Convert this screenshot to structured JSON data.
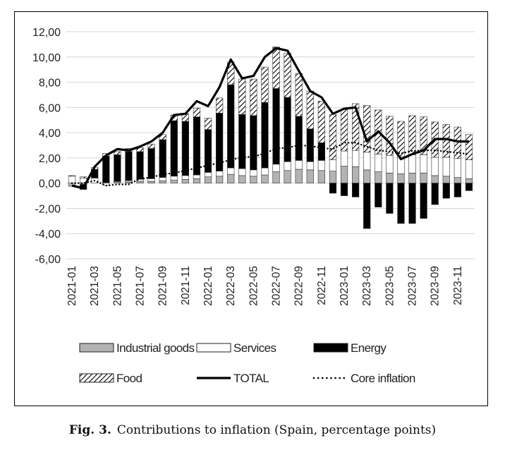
{
  "caption": {
    "label": "Fig. 3.",
    "text": "Contributions to inflation (Spain, percentage points)"
  },
  "chart_data": {
    "type": "bar",
    "stacked": true,
    "title": "",
    "xlabel": "",
    "ylabel": "",
    "ylim": [
      -6,
      12
    ],
    "yticks": [
      "12,00",
      "10,00",
      "8,00",
      "6,00",
      "4,00",
      "2,00",
      "0,00",
      "-2,00",
      "-4,00",
      "-6,00"
    ],
    "ytick_values": [
      12,
      10,
      8,
      6,
      4,
      2,
      0,
      -2,
      -4,
      -6
    ],
    "grid": true,
    "legend_position": "bottom",
    "categories": [
      "2021-01",
      "2021-02",
      "2021-03",
      "2021-04",
      "2021-05",
      "2021-06",
      "2021-07",
      "2021-08",
      "2021-09",
      "2021-10",
      "2021-11",
      "2021-12",
      "2022-01",
      "2022-02",
      "2022-03",
      "2022-04",
      "2022-05",
      "2022-06",
      "2022-07",
      "2022-08",
      "2022-09",
      "2022-10",
      "2022-11",
      "2022-12",
      "2023-01",
      "2023-02",
      "2023-03",
      "2023-04",
      "2023-05",
      "2023-06",
      "2023-07",
      "2023-08",
      "2023-09",
      "2023-10",
      "2023-11",
      "2023-12"
    ],
    "xtick_labels": [
      "2021-01",
      "2021-03",
      "2021-05",
      "2021-07",
      "2021-09",
      "2021-11",
      "2022-01",
      "2022-03",
      "2022-05",
      "2022-07",
      "2022-09",
      "2022-11",
      "2023-01",
      "2023-03",
      "2023-05",
      "2023-07",
      "2023-09",
      "2023-11"
    ],
    "series": [
      {
        "name": "Industrial goods",
        "kind": "bar",
        "color": "#b3b3b3",
        "values": [
          -0.25,
          -0.1,
          0.0,
          0.05,
          0.1,
          0.1,
          0.15,
          0.15,
          0.2,
          0.25,
          0.3,
          0.35,
          0.5,
          0.55,
          0.7,
          0.6,
          0.55,
          0.65,
          0.9,
          1.0,
          1.1,
          1.05,
          1.0,
          0.95,
          1.35,
          1.3,
          1.05,
          0.9,
          0.8,
          0.75,
          0.8,
          0.8,
          0.6,
          0.55,
          0.45,
          0.35
        ]
      },
      {
        "name": "Services",
        "kind": "bar",
        "color": "#ffffff",
        "values": [
          0.55,
          0.4,
          0.4,
          -0.15,
          0.05,
          0.1,
          0.15,
          0.2,
          0.25,
          0.3,
          0.3,
          0.3,
          0.35,
          0.4,
          0.5,
          0.55,
          0.5,
          0.55,
          0.6,
          0.7,
          0.7,
          0.65,
          0.8,
          0.9,
          1.2,
          1.3,
          1.4,
          1.4,
          1.4,
          1.35,
          1.45,
          1.45,
          1.45,
          1.5,
          1.5,
          1.5
        ]
      },
      {
        "name": "Energy",
        "kind": "bar",
        "color": "#000000",
        "values": [
          0.0,
          -0.4,
          0.7,
          2.1,
          2.1,
          2.3,
          2.2,
          2.4,
          3.0,
          4.4,
          4.3,
          4.6,
          3.4,
          4.6,
          6.6,
          4.3,
          4.3,
          5.2,
          6.0,
          5.1,
          3.5,
          2.6,
          1.4,
          -0.8,
          -1.0,
          -1.1,
          -3.6,
          -1.9,
          -2.4,
          -3.2,
          -3.2,
          -2.8,
          -1.7,
          -1.2,
          -1.1,
          -0.6
        ]
      },
      {
        "name": "Food",
        "kind": "bar",
        "color": "#ffffff",
        "hatched": true,
        "values": [
          0.05,
          0.1,
          0.15,
          0.2,
          0.25,
          0.25,
          0.3,
          0.35,
          0.4,
          0.45,
          0.6,
          0.7,
          0.9,
          1.2,
          1.8,
          2.8,
          2.9,
          2.8,
          3.3,
          3.5,
          3.4,
          3.0,
          3.3,
          3.6,
          3.3,
          3.7,
          3.7,
          3.5,
          3.1,
          2.8,
          3.1,
          3.0,
          2.8,
          2.6,
          2.5,
          2.0
        ]
      },
      {
        "name": "TOTAL",
        "kind": "line",
        "style": "solid",
        "color": "#000000",
        "values": [
          -0.2,
          -0.4,
          1.3,
          2.2,
          2.7,
          2.6,
          2.9,
          3.3,
          4.0,
          5.4,
          5.5,
          6.5,
          6.1,
          7.6,
          9.8,
          8.3,
          8.5,
          10.0,
          10.7,
          10.5,
          8.9,
          7.3,
          6.8,
          5.5,
          5.9,
          6.0,
          3.3,
          4.1,
          3.2,
          1.9,
          2.3,
          2.6,
          3.5,
          3.5,
          3.3,
          3.3
        ]
      },
      {
        "name": "Core inflation",
        "kind": "line",
        "style": "dotted",
        "color": "#000000",
        "values": [
          0.0,
          0.0,
          0.2,
          -0.2,
          -0.1,
          -0.1,
          0.35,
          0.45,
          0.7,
          0.8,
          1.0,
          1.2,
          1.4,
          1.6,
          1.85,
          2.05,
          2.1,
          2.35,
          2.75,
          2.8,
          3.0,
          2.95,
          2.8,
          2.7,
          3.2,
          3.2,
          2.9,
          2.6,
          2.5,
          2.35,
          2.55,
          2.6,
          2.6,
          2.5,
          2.4,
          2.3
        ]
      }
    ]
  }
}
